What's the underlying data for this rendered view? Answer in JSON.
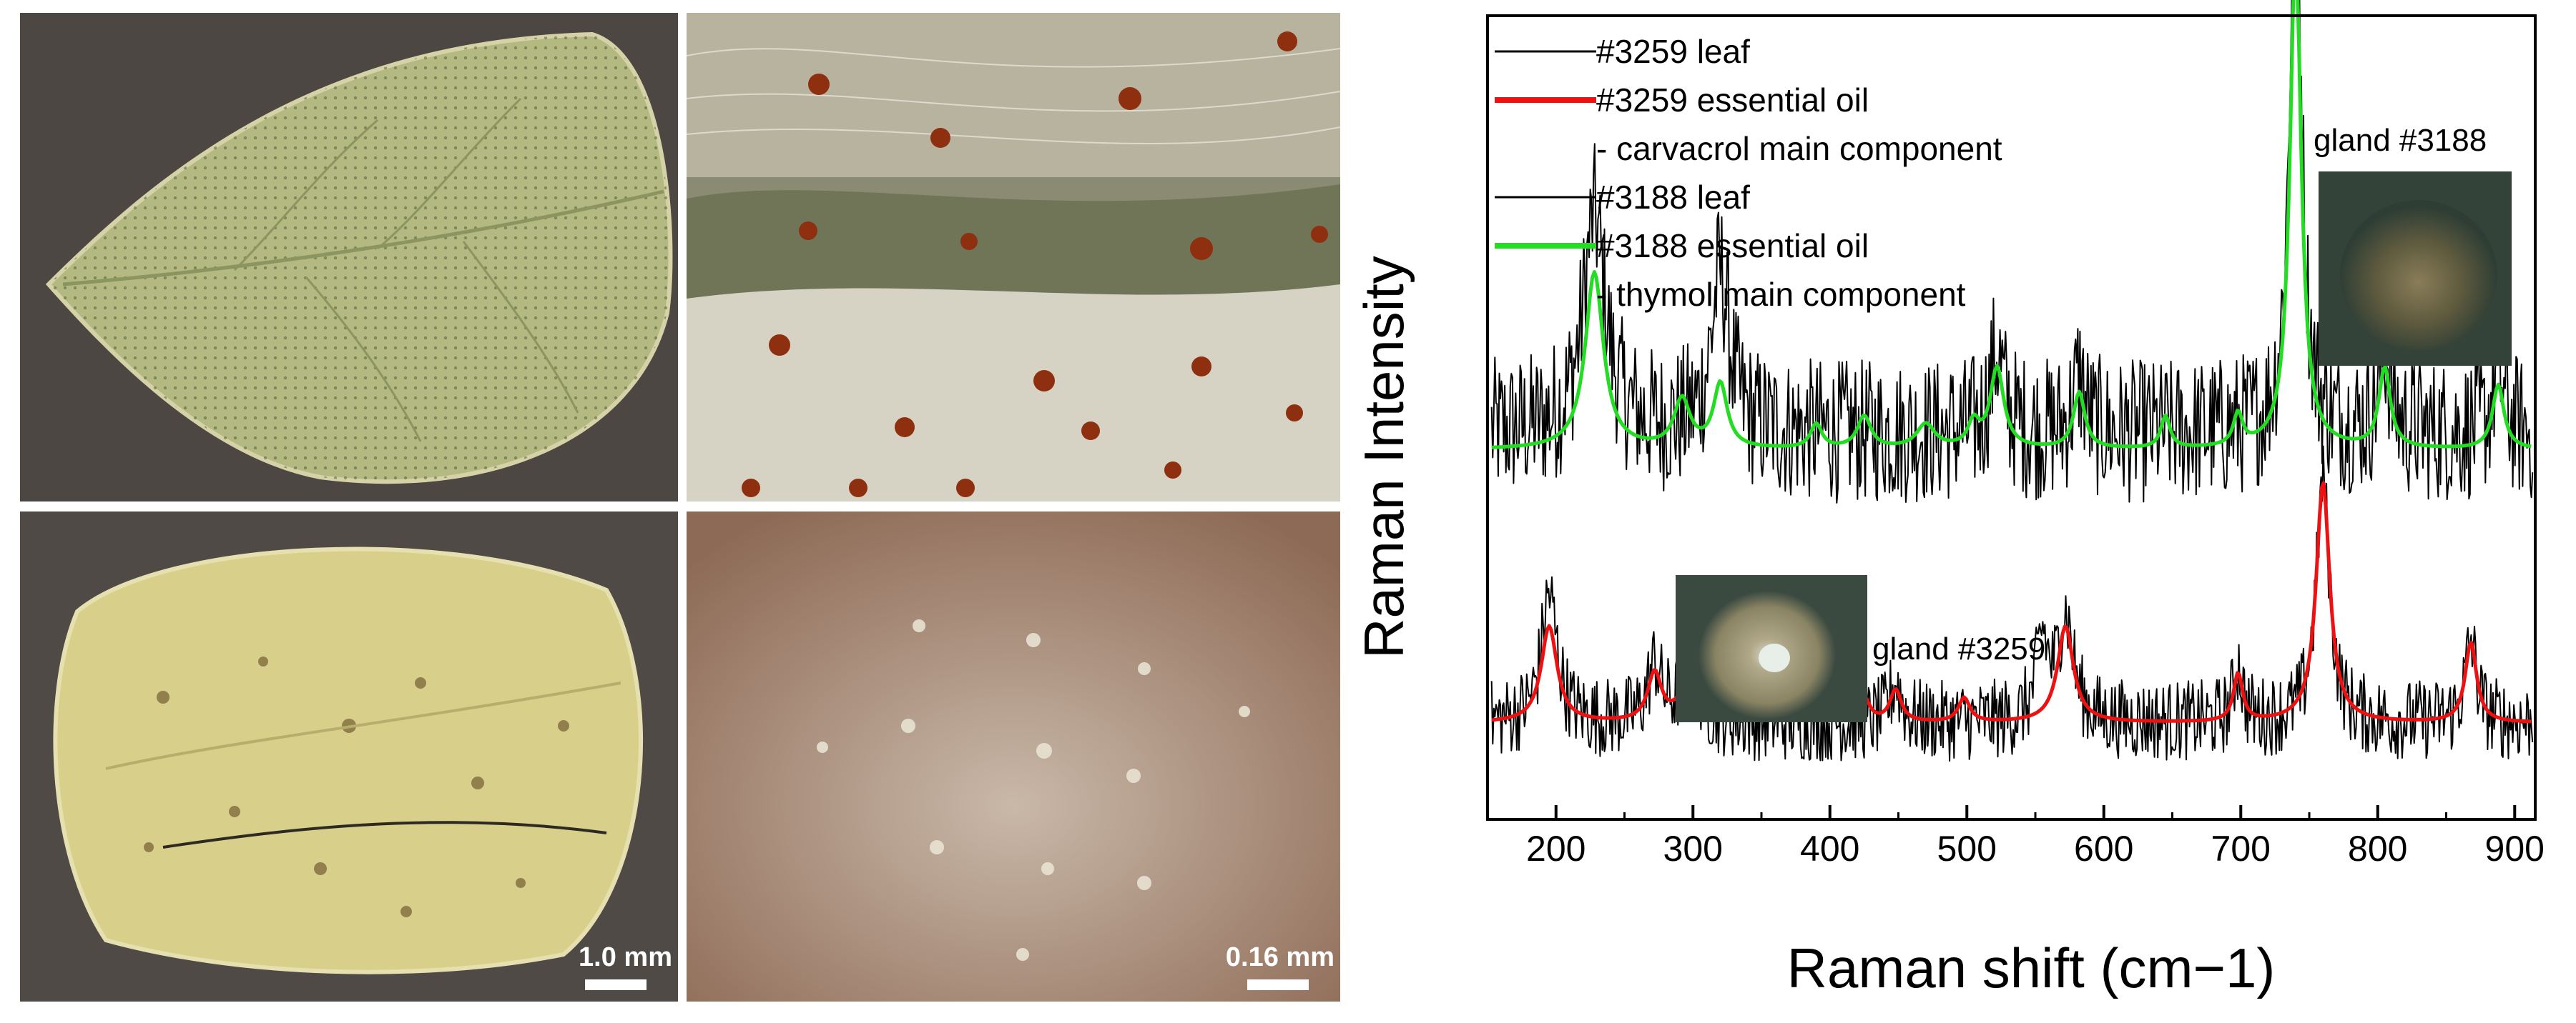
{
  "photos": [
    {
      "scale_text": ""
    },
    {
      "scale_text": ""
    },
    {
      "scale_text": "1.0 mm"
    },
    {
      "scale_text": "0.16 mm"
    }
  ],
  "chart_data": {
    "type": "line",
    "xlabel": "Raman shift (cm−1)",
    "ylabel": "Raman Intensity",
    "xlim": [
      150,
      915
    ],
    "ylim": [
      0,
      1
    ],
    "yaxis_units": "arbitrary (no tick labels)",
    "xticks": [
      200,
      300,
      400,
      500,
      600,
      700,
      800,
      900
    ],
    "grid": false,
    "legend_position": "top-left",
    "legend_entries": [
      "#3259 leaf",
      "#3259 essential oil",
      "- carvacrol main component",
      "#3188 leaf",
      "#3188 essential oil",
      "- thymol main component"
    ],
    "series": [
      {
        "name": "#3188 essential oil",
        "color": "#22dd22",
        "baseline": 0.46,
        "peaks": [
          [
            228,
            0.22,
            8
          ],
          [
            292,
            0.06,
            7
          ],
          [
            320,
            0.08,
            6
          ],
          [
            390,
            0.03,
            5
          ],
          [
            425,
            0.04,
            6
          ],
          [
            470,
            0.03,
            8
          ],
          [
            505,
            0.03,
            5
          ],
          [
            522,
            0.1,
            6
          ],
          [
            582,
            0.07,
            5
          ],
          [
            645,
            0.04,
            4
          ],
          [
            698,
            0.04,
            4
          ],
          [
            740,
            0.62,
            5
          ],
          [
            805,
            0.1,
            5
          ],
          [
            888,
            0.08,
            5
          ]
        ]
      },
      {
        "name": "#3188 leaf",
        "color": "#000000",
        "baseline": 0.48,
        "noise": 0.09,
        "peaks": [
          [
            228,
            0.27,
            10
          ],
          [
            320,
            0.2,
            8
          ],
          [
            522,
            0.1,
            6
          ],
          [
            582,
            0.07,
            5
          ],
          [
            740,
            0.75,
            5
          ],
          [
            805,
            0.1,
            5
          ],
          [
            888,
            0.08,
            5
          ]
        ]
      },
      {
        "name": "#3259 essential oil",
        "color": "#ee1111",
        "baseline": 0.12,
        "peaks": [
          [
            195,
            0.12,
            7
          ],
          [
            272,
            0.06,
            6
          ],
          [
            298,
            0.06,
            8
          ],
          [
            378,
            0.03,
            5
          ],
          [
            425,
            0.03,
            5
          ],
          [
            448,
            0.04,
            5
          ],
          [
            498,
            0.03,
            5
          ],
          [
            572,
            0.12,
            7
          ],
          [
            698,
            0.06,
            4
          ],
          [
            760,
            0.3,
            6
          ],
          [
            868,
            0.1,
            5
          ]
        ]
      },
      {
        "name": "#3259 leaf",
        "color": "#000000",
        "baseline": 0.12,
        "noise": 0.05,
        "peaks": [
          [
            195,
            0.16,
            7
          ],
          [
            272,
            0.07,
            6
          ],
          [
            298,
            0.07,
            8
          ],
          [
            448,
            0.05,
            5
          ],
          [
            555,
            0.1,
            5
          ],
          [
            572,
            0.13,
            7
          ],
          [
            698,
            0.07,
            4
          ],
          [
            760,
            0.3,
            6
          ],
          [
            868,
            0.1,
            5
          ]
        ]
      }
    ],
    "annotations": [
      "gland #3188",
      "gland #3259"
    ],
    "annotation_colors": {
      "gland_photo_bg": "#3a4a3e",
      "gland_3188_center": "#6e6646",
      "gland_3259_center": "#b9b49a"
    }
  },
  "photo_colors": {
    "leaf_green": "#aab67a",
    "leaf_yellow": "#d8d08a",
    "panel_dark": "#4a4540",
    "hairy_bg": "#cfcab8",
    "brown_bg": "#9a7d68",
    "gland_red": "#9b3a16"
  }
}
